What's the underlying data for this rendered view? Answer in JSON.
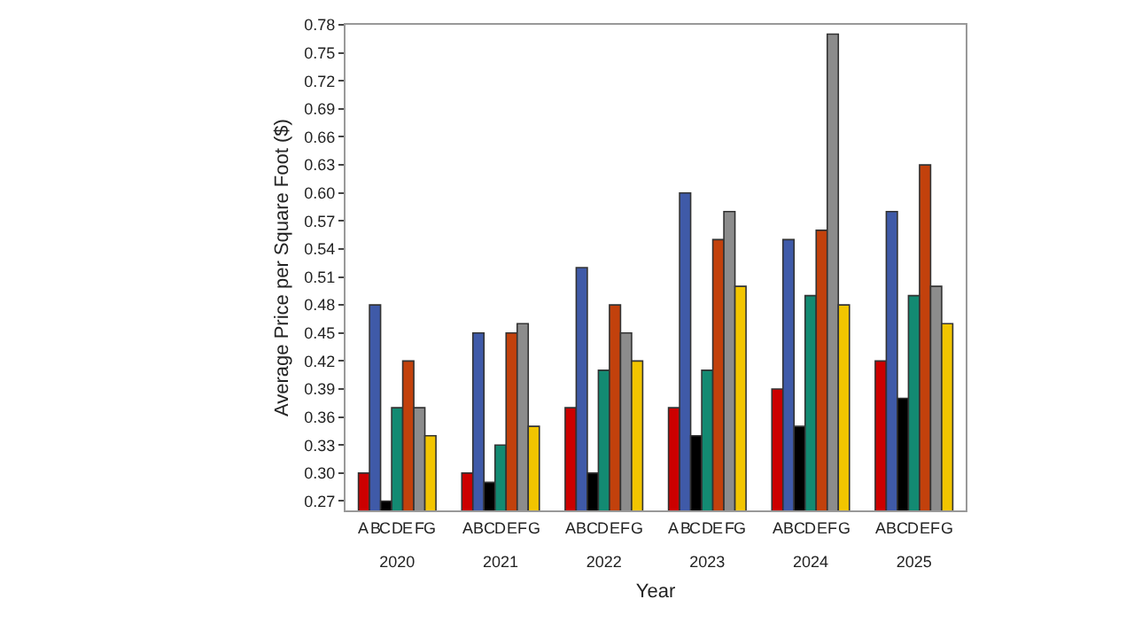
{
  "chart_data": {
    "type": "bar",
    "xlabel": "Year",
    "ylabel": "Average Price per Square Foot ($)",
    "categories": [
      "2020",
      "2021",
      "2022",
      "2023",
      "2024",
      "2025"
    ],
    "series": [
      {
        "name": "A",
        "color": "#cc0000",
        "values": [
          0.3,
          0.3,
          0.37,
          0.37,
          0.39,
          0.42
        ]
      },
      {
        "name": "B",
        "color": "#3f5aa8",
        "values": [
          0.48,
          0.45,
          0.52,
          0.6,
          0.55,
          0.58
        ]
      },
      {
        "name": "C",
        "color": "#000000",
        "values": [
          0.27,
          0.29,
          0.3,
          0.34,
          0.35,
          0.38
        ]
      },
      {
        "name": "D",
        "color": "#138a72",
        "values": [
          0.37,
          0.33,
          0.41,
          0.41,
          0.49,
          0.49
        ]
      },
      {
        "name": "E",
        "color": "#c2410c",
        "values": [
          0.42,
          0.45,
          0.48,
          0.55,
          0.56,
          0.63
        ]
      },
      {
        "name": "F",
        "color": "#8c8c8c",
        "values": [
          0.37,
          0.46,
          0.45,
          0.58,
          0.77,
          0.5
        ]
      },
      {
        "name": "G",
        "color": "#f2c500",
        "values": [
          0.34,
          0.35,
          0.42,
          0.5,
          0.48,
          0.46
        ]
      }
    ],
    "ylim": [
      0.26,
      0.78
    ],
    "yticks": [
      0.27,
      {
        "value": 0.3,
        "label": "0.30"
      },
      0.33,
      0.36,
      0.39,
      0.42,
      0.45,
      0.48,
      0.51,
      0.54,
      0.57,
      {
        "value": 0.6,
        "label": "0.60"
      },
      0.63,
      0.66,
      0.69,
      0.72,
      0.75,
      0.78
    ],
    "legend": false
  }
}
